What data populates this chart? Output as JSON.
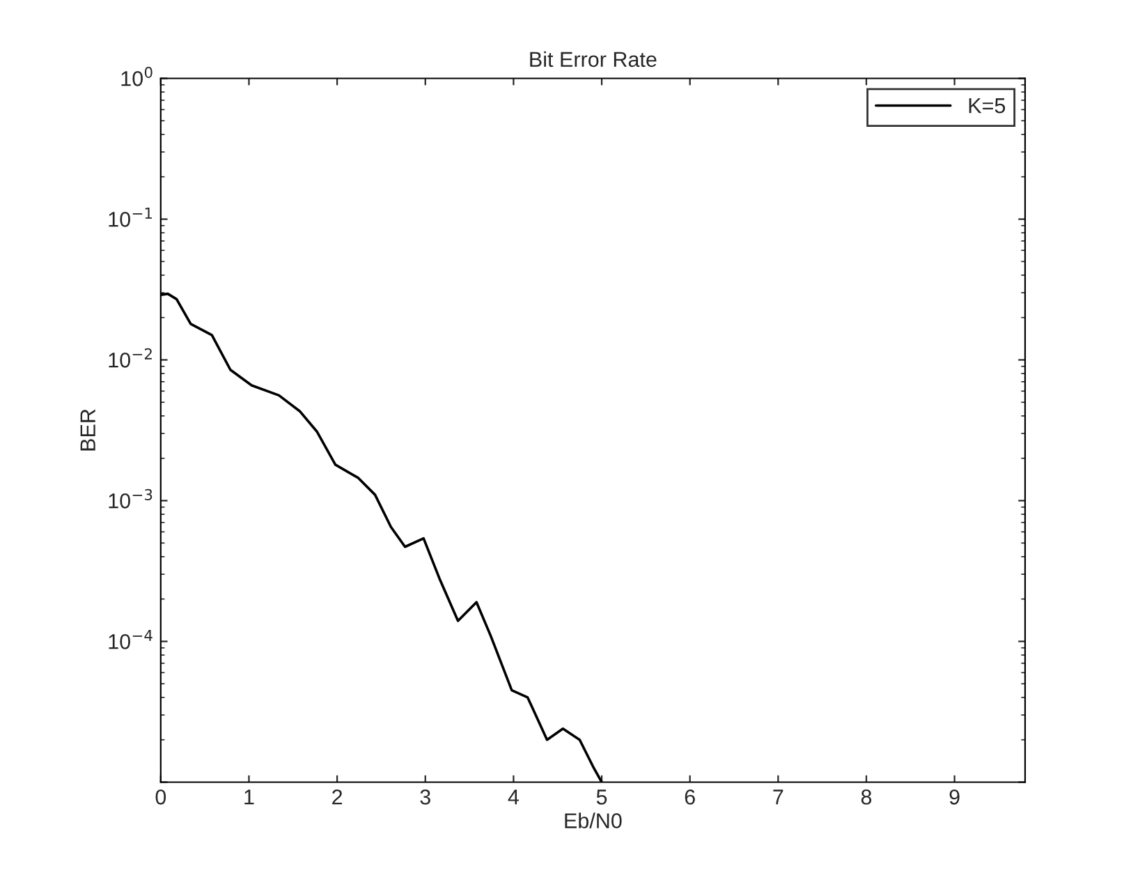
{
  "chart_data": {
    "type": "line",
    "title": "Bit Error Rate",
    "xlabel": "Eb/N0",
    "ylabel": "BER",
    "x": [
      0,
      0.08,
      0.18,
      0.34,
      0.58,
      0.79,
      1.03,
      1.34,
      1.58,
      1.77,
      1.98,
      2.24,
      2.43,
      2.61,
      2.77,
      2.98,
      3.16,
      3.37,
      3.58,
      3.74,
      3.98,
      4.16,
      4.38,
      4.56,
      4.75,
      4.91,
      5.0
    ],
    "series": [
      {
        "name": "K=5",
        "color": "#000000",
        "values": [
          0.029,
          0.0295,
          0.027,
          0.018,
          0.015,
          0.0085,
          0.0066,
          0.0056,
          0.0043,
          0.0031,
          0.0018,
          0.00145,
          0.0011,
          0.00065,
          0.00047,
          0.00054,
          0.00028,
          0.00014,
          0.00019,
          0.00011,
          4.5e-05,
          4e-05,
          2e-05,
          2.4e-05,
          2e-05,
          1.26e-05,
          1e-05
        ]
      }
    ],
    "log": "y",
    "xlim": [
      0,
      9.8
    ],
    "xticks": [
      0,
      1,
      2,
      3,
      4,
      5,
      6,
      7,
      8,
      9
    ],
    "ylim": [
      1e-05,
      1
    ],
    "yticks": [
      {
        "value": 1e-05,
        "label": null
      },
      {
        "value": 0.0001,
        "label": "10$^{−4}$"
      },
      {
        "value": 0.001,
        "label": "10$^{−3}$"
      },
      {
        "value": 0.01,
        "label": "10$^{−2}$"
      },
      {
        "value": 0.1,
        "label": "10$^{−1}$"
      },
      {
        "value": 1,
        "label": "10$^{0}$"
      }
    ],
    "legend": "top right",
    "grid": false,
    "marker": "none",
    "line_style": "solid"
  }
}
